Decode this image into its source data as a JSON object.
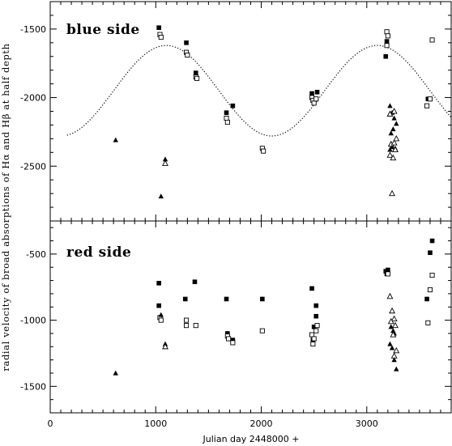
{
  "chart_data": [
    {
      "type": "scatter",
      "panel": "top",
      "panel_label": "blue side",
      "ylim": [
        -2900,
        -1300
      ],
      "yticks": [
        -1500,
        -2000,
        -2500
      ],
      "xlim": [
        0,
        3800
      ],
      "xticks": [
        0,
        1000,
        2000,
        3000
      ],
      "series": [
        {
          "marker": "filled-square",
          "points": [
            [
              1030,
              -1490
            ],
            [
              1290,
              -1600
            ],
            [
              1380,
              -1820
            ],
            [
              1670,
              -2110
            ],
            [
              1730,
              -2060
            ],
            [
              2480,
              -1970
            ],
            [
              2530,
              -1960
            ],
            [
              3180,
              -1700
            ],
            [
              3190,
              -1590
            ],
            [
              3580,
              -2010
            ]
          ]
        },
        {
          "marker": "open-square",
          "points": [
            [
              1040,
              -1540
            ],
            [
              1050,
              -1560
            ],
            [
              1290,
              -1670
            ],
            [
              1300,
              -1690
            ],
            [
              1380,
              -1850
            ],
            [
              1390,
              -1860
            ],
            [
              1670,
              -2150
            ],
            [
              1680,
              -2180
            ],
            [
              2010,
              -2370
            ],
            [
              2020,
              -2390
            ],
            [
              2480,
              -2000
            ],
            [
              2490,
              -2020
            ],
            [
              2500,
              -2040
            ],
            [
              2520,
              -2010
            ],
            [
              3190,
              -1520
            ],
            [
              3200,
              -1550
            ],
            [
              3190,
              -1620
            ],
            [
              3570,
              -2060
            ],
            [
              3600,
              -2010
            ],
            [
              3620,
              -1580
            ]
          ]
        },
        {
          "marker": "filled-triangle",
          "points": [
            [
              620,
              -2310
            ],
            [
              1050,
              -2720
            ],
            [
              1090,
              -2450
            ],
            [
              3220,
              -2060
            ],
            [
              3240,
              -2110
            ],
            [
              3260,
              -2150
            ],
            [
              3230,
              -2260
            ],
            [
              3250,
              -2230
            ],
            [
              3280,
              -2190
            ],
            [
              3220,
              -2380
            ],
            [
              3240,
              -2360
            ],
            [
              3270,
              -2370
            ]
          ]
        },
        {
          "marker": "open-triangle",
          "points": [
            [
              1090,
              -2480
            ],
            [
              3220,
              -2420
            ],
            [
              3250,
              -2440
            ],
            [
              3270,
              -2380
            ],
            [
              3230,
              -2340
            ],
            [
              3260,
              -2330
            ],
            [
              3280,
              -2300
            ],
            [
              3240,
              -2700
            ],
            [
              3220,
              -2120
            ],
            [
              3260,
              -2100
            ]
          ]
        }
      ],
      "model_curve": {
        "style": "dotted",
        "mean": -1950,
        "amplitude": 330,
        "period_days": 2000,
        "max_at_day": 1100,
        "x_range": [
          160,
          3800
        ]
      }
    },
    {
      "type": "scatter",
      "panel": "bottom",
      "panel_label": "red side",
      "ylim": [
        -1700,
        -250
      ],
      "yticks": [
        -500,
        -1000,
        -1500
      ],
      "xlim": [
        0,
        3800
      ],
      "xticks": [
        0,
        1000,
        2000,
        3000
      ],
      "xtick_labels": [
        "0",
        "1000",
        "2000",
        "3000"
      ],
      "xlabel": "Julian day 2448000 +",
      "series": [
        {
          "marker": "filled-square",
          "points": [
            [
              1030,
              -720
            ],
            [
              1030,
              -890
            ],
            [
              1280,
              -840
            ],
            [
              1370,
              -710
            ],
            [
              1670,
              -840
            ],
            [
              1680,
              -1100
            ],
            [
              1730,
              -1150
            ],
            [
              2010,
              -840
            ],
            [
              2480,
              -760
            ],
            [
              2490,
              -1150
            ],
            [
              2500,
              -1050
            ],
            [
              2520,
              -890
            ],
            [
              2520,
              -970
            ],
            [
              3180,
              -630
            ],
            [
              3200,
              -620
            ],
            [
              3190,
              -650
            ],
            [
              3570,
              -840
            ],
            [
              3600,
              -490
            ],
            [
              3620,
              -400
            ]
          ]
        },
        {
          "marker": "open-square",
          "points": [
            [
              1040,
              -980
            ],
            [
              1050,
              -1000
            ],
            [
              1290,
              -1000
            ],
            [
              1290,
              -1040
            ],
            [
              1380,
              -1040
            ],
            [
              1680,
              -1120
            ],
            [
              1690,
              -1140
            ],
            [
              1730,
              -1170
            ],
            [
              2010,
              -1080
            ],
            [
              2480,
              -1110
            ],
            [
              2490,
              -1180
            ],
            [
              2500,
              -1140
            ],
            [
              2520,
              -1080
            ],
            [
              2530,
              -1040
            ],
            [
              3200,
              -650
            ],
            [
              3580,
              -1020
            ],
            [
              3600,
              -770
            ],
            [
              3620,
              -660
            ]
          ]
        },
        {
          "marker": "filled-triangle",
          "points": [
            [
              620,
              -1400
            ],
            [
              1050,
              -960
            ],
            [
              1090,
              -1180
            ],
            [
              3230,
              -1050
            ],
            [
              3250,
              -1080
            ],
            [
              3220,
              -1180
            ],
            [
              3240,
              -1210
            ],
            [
              3260,
              -1300
            ],
            [
              3280,
              -1370
            ],
            [
              3260,
              -1100
            ]
          ]
        },
        {
          "marker": "open-triangle",
          "points": [
            [
              1090,
              -1200
            ],
            [
              3220,
              -820
            ],
            [
              3240,
              -930
            ],
            [
              3260,
              -990
            ],
            [
              3230,
              -1010
            ],
            [
              3270,
              -1040
            ],
            [
              3250,
              -1110
            ],
            [
              3280,
              -1230
            ],
            [
              3260,
              -1270
            ]
          ]
        }
      ]
    }
  ],
  "ylabel": "radial velocity of broad absorptions of Hα and Hβ at half depth"
}
